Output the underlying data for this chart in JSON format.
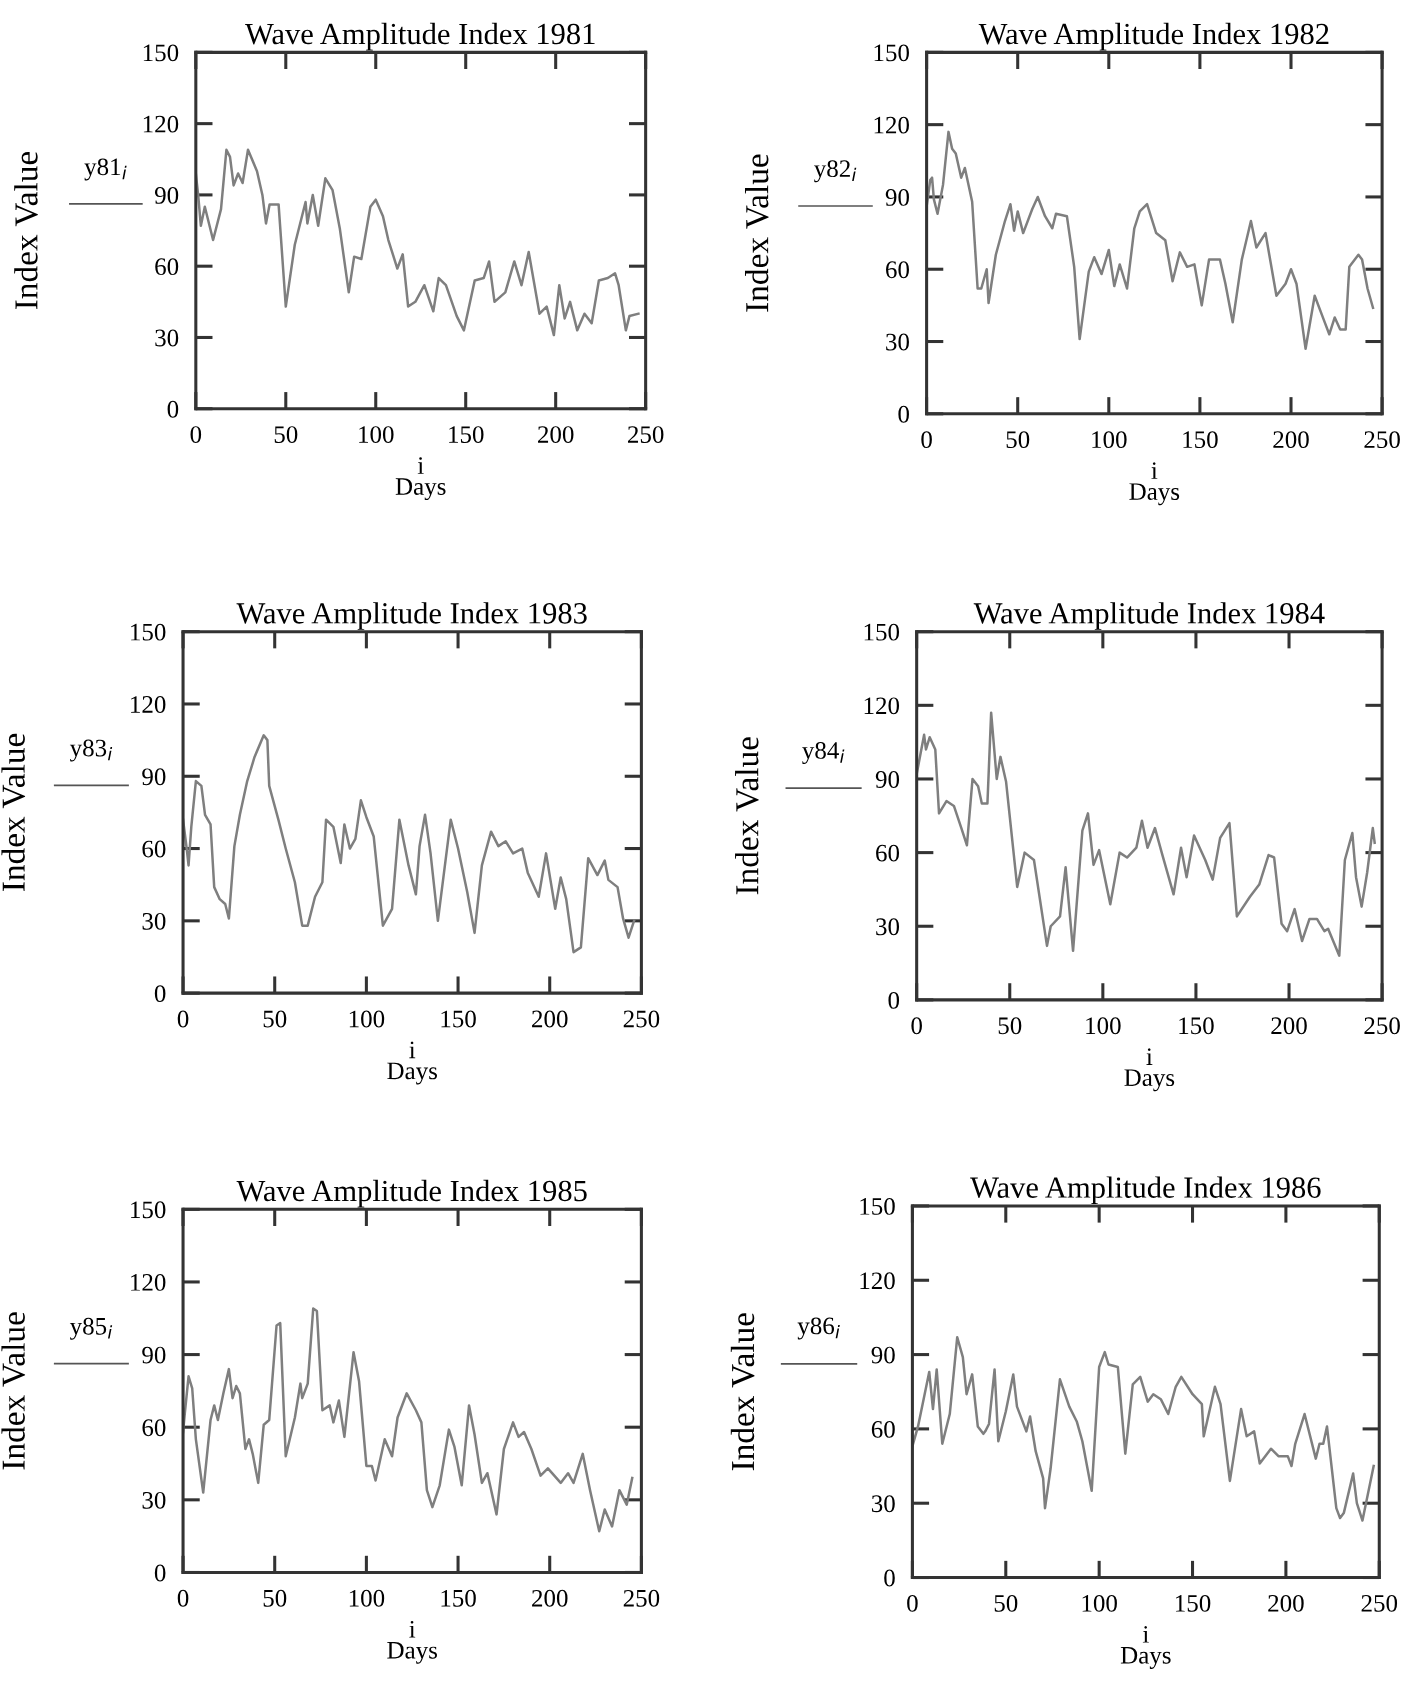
{
  "chart_data": [
    {
      "type": "line",
      "title": "Wave Amplitude Index 1981",
      "xlabel": "i\nDays",
      "ylabel": "Index Value",
      "annotations": [
        "y81$_{i}$"
      ],
      "color": "#7f7f7f",
      "xlim": [
        0,
        250
      ],
      "ylim": [
        0,
        150
      ],
      "xticks": [
        0,
        50,
        100,
        150,
        200,
        250
      ],
      "yticks": [
        0,
        30,
        60,
        90,
        120,
        150
      ],
      "x": [
        0,
        1.3,
        2.8,
        5,
        9.6,
        14,
        17,
        19,
        21,
        23.5,
        26,
        29,
        34,
        37,
        39,
        41,
        46,
        50,
        55,
        61,
        62,
        65,
        68,
        72,
        76,
        80,
        85,
        88,
        92,
        97,
        100,
        104,
        107,
        112,
        115,
        118,
        122,
        127,
        132,
        135,
        139,
        145,
        149,
        155,
        160,
        163,
        166,
        172,
        177,
        181,
        185,
        191,
        195,
        199,
        202,
        205,
        208,
        212,
        216,
        220,
        224,
        229,
        233,
        235,
        239,
        241,
        246
      ],
      "values": [
        99,
        90,
        77,
        85,
        71,
        84,
        109,
        106,
        94,
        99,
        95,
        109,
        100,
        90,
        78,
        86,
        86,
        43,
        69,
        87,
        78,
        90,
        77,
        97,
        92,
        76,
        49,
        64,
        63,
        85,
        88,
        81,
        71,
        59,
        65,
        43,
        45,
        52,
        41,
        55,
        52,
        39,
        33,
        54,
        55,
        62,
        45,
        49,
        62,
        52,
        66,
        40,
        43,
        31,
        52,
        38,
        45,
        33,
        40,
        36,
        54,
        55,
        57,
        52,
        33,
        39,
        40
      ]
    },
    {
      "type": "line",
      "title": "Wave Amplitude Index 1982",
      "xlabel": "i\nDays",
      "ylabel": "Index Value",
      "annotations": [
        "y82$_{i}$"
      ],
      "color": "#7f7f7f",
      "xlim": [
        0,
        250
      ],
      "ylim": [
        0,
        150
      ],
      "xticks": [
        0,
        50,
        100,
        150,
        200,
        250
      ],
      "yticks": [
        0,
        30,
        60,
        90,
        120,
        150
      ],
      "x": [
        0,
        2,
        3,
        4,
        6,
        9,
        12,
        14,
        16,
        19,
        21,
        25,
        28,
        30,
        33,
        34,
        38,
        43,
        46,
        48,
        50,
        53,
        58,
        61,
        65,
        69,
        71,
        77,
        81,
        84,
        89,
        92,
        96,
        100,
        103,
        106,
        110,
        114,
        117,
        121,
        126,
        131,
        135,
        139,
        143,
        147,
        151,
        155,
        161,
        164,
        168,
        173,
        178,
        181,
        186,
        192,
        197,
        200,
        203,
        208,
        213,
        218,
        221,
        224,
        227,
        230,
        232,
        237,
        239,
        242,
        245
      ],
      "values": [
        86,
        97,
        98,
        89,
        83,
        95,
        117,
        110,
        108,
        98,
        102,
        88,
        52,
        52,
        60,
        46,
        66,
        80,
        87,
        76,
        84,
        75,
        85,
        90,
        82,
        77,
        83,
        82,
        61,
        31,
        59,
        65,
        58,
        68,
        53,
        62,
        52,
        77,
        84,
        87,
        75,
        72,
        55,
        67,
        61,
        62,
        45,
        64,
        64,
        54,
        38,
        64,
        80,
        69,
        75,
        49,
        54,
        60,
        54,
        27,
        49,
        39,
        33,
        40,
        35,
        35,
        61,
        66,
        64,
        52,
        44
      ]
    },
    {
      "type": "line",
      "title": "Wave Amplitude Index 1983",
      "xlabel": "i\nDays",
      "ylabel": "Index Value",
      "annotations": [
        "y83$_{i}$"
      ],
      "color": "#7f7f7f",
      "xlim": [
        0,
        250
      ],
      "ylim": [
        0,
        150
      ],
      "xticks": [
        0,
        50,
        100,
        150,
        200,
        250
      ],
      "yticks": [
        0,
        30,
        60,
        90,
        120,
        150
      ],
      "x": [
        0,
        2,
        3,
        4.5,
        7,
        10,
        12,
        15,
        17,
        20,
        23,
        25,
        28,
        31,
        35,
        39,
        44,
        46,
        47,
        52,
        56,
        61,
        65,
        68,
        72,
        76,
        78,
        82,
        86,
        88,
        91,
        94,
        97,
        100,
        104,
        109,
        114,
        118,
        123,
        127,
        129,
        132,
        135,
        139,
        146,
        150,
        155,
        159,
        163,
        168,
        172,
        176,
        180,
        185,
        188,
        194,
        198,
        203,
        206,
        209,
        213,
        217,
        221,
        226,
        230,
        232,
        237,
        240,
        243,
        246
      ],
      "values": [
        72,
        60,
        53,
        69,
        88,
        86,
        74,
        70,
        44,
        39,
        37,
        31,
        61,
        74,
        88,
        98,
        107,
        105,
        86,
        72,
        60,
        46,
        28,
        28,
        40,
        46,
        72,
        69,
        54,
        70,
        60,
        64,
        80,
        73,
        65,
        28,
        35,
        72,
        53,
        41,
        61,
        74,
        58,
        30,
        72,
        60,
        42,
        25,
        53,
        67,
        61,
        63,
        58,
        60,
        50,
        40,
        58,
        35,
        48,
        39,
        17,
        19,
        56,
        49,
        55,
        47,
        44,
        31,
        23,
        30
      ]
    },
    {
      "type": "line",
      "title": "Wave Amplitude Index 1984",
      "xlabel": "i\nDays",
      "ylabel": "Index Value",
      "annotations": [
        "y84$_{i}$"
      ],
      "color": "#7f7f7f",
      "xlim": [
        0,
        250
      ],
      "ylim": [
        0,
        150
      ],
      "xticks": [
        0,
        50,
        100,
        150,
        200,
        250
      ],
      "yticks": [
        0,
        30,
        60,
        90,
        120,
        150
      ],
      "x": [
        0,
        1,
        4,
        5,
        7,
        10,
        12,
        16,
        20,
        24,
        27,
        30,
        33,
        35,
        38,
        40,
        43,
        45,
        48,
        54,
        58,
        63,
        70,
        72,
        77,
        80,
        84,
        89,
        92,
        95,
        98,
        104,
        109,
        113,
        118,
        121,
        124,
        128,
        132,
        138,
        142,
        145,
        149,
        155,
        159,
        163,
        168,
        172,
        179,
        184,
        189,
        192,
        196,
        199,
        203,
        207,
        211,
        215,
        219,
        221,
        227,
        230,
        234,
        236,
        239,
        242,
        245,
        246
      ],
      "values": [
        92,
        96,
        108,
        102,
        107,
        102,
        76,
        81,
        79,
        70,
        63,
        90,
        87,
        80,
        80,
        117,
        90,
        99,
        89,
        46,
        60,
        57,
        22,
        30,
        34,
        54,
        20,
        69,
        76,
        55,
        61,
        39,
        60,
        58,
        62,
        73,
        62,
        70,
        59,
        43,
        62,
        50,
        67,
        57,
        49,
        66,
        72,
        34,
        42,
        47,
        59,
        58,
        31,
        28,
        37,
        24,
        33,
        33,
        28,
        29,
        18,
        57,
        68,
        50,
        38,
        52,
        70,
        64
      ]
    },
    {
      "type": "line",
      "title": "Wave Amplitude Index 1985",
      "xlabel": "i\nDays",
      "ylabel": "Index Value",
      "annotations": [
        "y85$_{i}$"
      ],
      "color": "#7f7f7f",
      "xlim": [
        0,
        250
      ],
      "ylim": [
        0,
        150
      ],
      "xticks": [
        0,
        50,
        100,
        150,
        200,
        250
      ],
      "yticks": [
        0,
        30,
        60,
        90,
        120,
        150
      ],
      "x": [
        0,
        1,
        3,
        5,
        7,
        11,
        15,
        17,
        19,
        22,
        25,
        27,
        29,
        31,
        34,
        36,
        38,
        41,
        44,
        47,
        51,
        53,
        56,
        61,
        64,
        65,
        68,
        71,
        73,
        76,
        80,
        82,
        85,
        88,
        93,
        96,
        100,
        103,
        105,
        110,
        114,
        117,
        122,
        127,
        130,
        133,
        136,
        140,
        145,
        148,
        152,
        156,
        159,
        163,
        166,
        171,
        175,
        180,
        183,
        186,
        190,
        195,
        199,
        206,
        210,
        213,
        218,
        222,
        227,
        230,
        234,
        238,
        242,
        245
      ],
      "values": [
        58,
        66,
        81,
        76,
        55,
        33,
        63,
        69,
        63,
        74,
        84,
        72,
        77,
        74,
        51,
        55,
        49,
        37,
        61,
        63,
        102,
        103,
        48,
        64,
        78,
        72,
        78,
        109,
        108,
        67,
        69,
        62,
        71,
        56,
        91,
        79,
        44,
        44,
        38,
        55,
        48,
        64,
        74,
        67,
        62,
        34,
        27,
        36,
        59,
        52,
        36,
        69,
        57,
        37,
        41,
        24,
        51,
        62,
        56,
        58,
        51,
        40,
        43,
        37,
        41,
        37,
        49,
        34,
        17,
        26,
        19,
        34,
        28,
        39
      ]
    },
    {
      "type": "line",
      "title": "Wave Amplitude Index 1986",
      "xlabel": "i\nDays",
      "ylabel": "Index Value",
      "annotations": [
        "y86$_{i}$"
      ],
      "color": "#7f7f7f",
      "xlim": [
        0,
        250
      ],
      "ylim": [
        0,
        150
      ],
      "xticks": [
        0,
        50,
        100,
        150,
        200,
        250
      ],
      "yticks": [
        0,
        30,
        60,
        90,
        120,
        150
      ],
      "x": [
        0,
        3,
        6,
        9,
        11,
        13,
        16,
        20,
        24,
        27,
        29,
        32,
        35,
        38,
        39,
        41,
        44,
        46,
        50,
        54,
        56,
        61,
        63,
        66,
        70,
        71,
        74,
        79,
        84,
        88,
        91,
        96,
        100,
        103,
        105,
        110,
        114,
        118,
        122,
        126,
        129,
        133,
        137,
        141,
        144,
        150,
        155,
        156,
        162,
        165,
        170,
        176,
        179,
        183,
        186,
        192,
        196,
        201,
        203,
        205,
        210,
        216,
        218,
        220,
        222,
        227,
        229,
        231,
        236,
        238,
        241,
        247
      ],
      "values": [
        53,
        61,
        72,
        83,
        68,
        84,
        54,
        66,
        97,
        89,
        74,
        82,
        61,
        58,
        59,
        62,
        84,
        55,
        67,
        82,
        69,
        59,
        65,
        51,
        40,
        28,
        44,
        80,
        69,
        63,
        55,
        35,
        85,
        91,
        86,
        85,
        50,
        78,
        81,
        71,
        74,
        72,
        66,
        77,
        81,
        74,
        70,
        57,
        77,
        70,
        39,
        68,
        57,
        59,
        46,
        52,
        49,
        49,
        45,
        54,
        66,
        48,
        54,
        54,
        61,
        28,
        24,
        26,
        42,
        30,
        23,
        45
      ]
    }
  ]
}
